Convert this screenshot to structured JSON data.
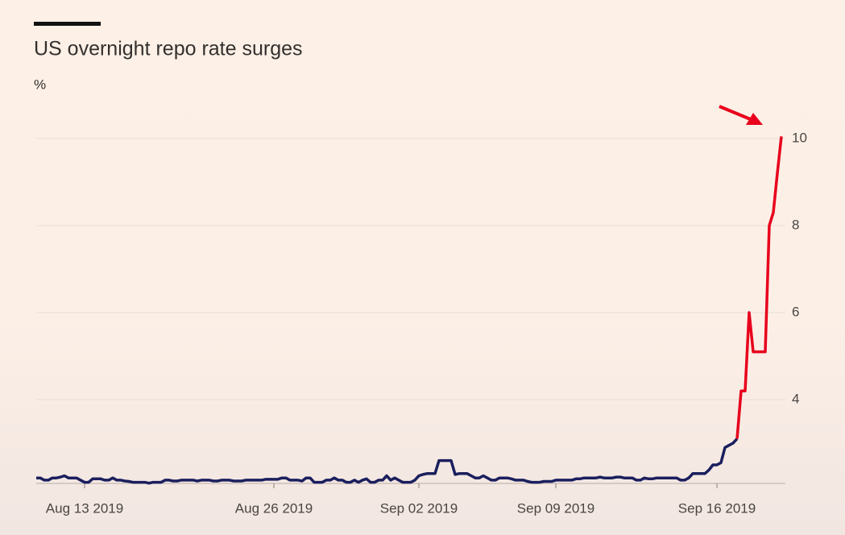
{
  "chart_data": {
    "type": "line",
    "title": "US overnight repo rate surges",
    "y_unit": "%",
    "categories": [
      null,
      null,
      null,
      null,
      null,
      null,
      null,
      null,
      null,
      null,
      null,
      null,
      "Aug 13 2019",
      null,
      null,
      null,
      null,
      null,
      null,
      null,
      null,
      null,
      null,
      null,
      null,
      null,
      null,
      null,
      null,
      null,
      null,
      null,
      null,
      null,
      null,
      null,
      null,
      null,
      null,
      null,
      null,
      null,
      null,
      null,
      null,
      null,
      null,
      null,
      null,
      null,
      null,
      null,
      null,
      null,
      null,
      null,
      null,
      null,
      null,
      "Aug 26 2019",
      null,
      null,
      null,
      null,
      null,
      null,
      null,
      null,
      null,
      null,
      null,
      null,
      null,
      null,
      null,
      null,
      null,
      null,
      null,
      null,
      null,
      null,
      null,
      null,
      null,
      null,
      null,
      null,
      null,
      null,
      null,
      null,
      null,
      null,
      null,
      "Sep 02 2019",
      null,
      null,
      null,
      null,
      null,
      null,
      null,
      null,
      null,
      null,
      null,
      null,
      null,
      null,
      null,
      null,
      null,
      null,
      null,
      null,
      null,
      null,
      null,
      null,
      null,
      null,
      null,
      null,
      null,
      null,
      null,
      null,
      null,
      "Sep 09 2019",
      null,
      null,
      null,
      null,
      null,
      null,
      null,
      null,
      null,
      null,
      null,
      null,
      null,
      null,
      null,
      null,
      null,
      null,
      null,
      null,
      null,
      null,
      null,
      null,
      null,
      null,
      null,
      null,
      null,
      null,
      null,
      null,
      null,
      null,
      null,
      null,
      null,
      null,
      null,
      "Sep 16 2019",
      null,
      null,
      null,
      null,
      null,
      null,
      null,
      null,
      null,
      null,
      null,
      null,
      null,
      null,
      null,
      null
    ],
    "series": [
      {
        "color": "#1b1f5e",
        "values": [
          2.2,
          2.2,
          2.15,
          2.15,
          2.2,
          2.2,
          2.22,
          2.25,
          2.2,
          2.2,
          2.2,
          2.15,
          2.1,
          2.1,
          2.18,
          2.18,
          2.18,
          2.15,
          2.15,
          2.2,
          2.15,
          2.15,
          2.13,
          2.12,
          2.1,
          2.1,
          2.1,
          2.1,
          2.08,
          2.1,
          2.1,
          2.1,
          2.15,
          2.15,
          2.13,
          2.13,
          2.15,
          2.15,
          2.15,
          2.15,
          2.13,
          2.15,
          2.15,
          2.15,
          2.13,
          2.13,
          2.15,
          2.15,
          2.15,
          2.13,
          2.13,
          2.13,
          2.15,
          2.15,
          2.15,
          2.15,
          2.15,
          2.17,
          2.17,
          2.17,
          2.17,
          2.2,
          2.2,
          2.15,
          2.15,
          2.15,
          2.13,
          2.2,
          2.2,
          2.1,
          2.1,
          2.1,
          2.15,
          2.15,
          2.2,
          2.15,
          2.15,
          2.1,
          2.1,
          2.15,
          2.1,
          2.15,
          2.18,
          2.1,
          2.1,
          2.15,
          2.15,
          2.25,
          2.15,
          2.2,
          2.15,
          2.1,
          2.1,
          2.1,
          2.15,
          2.25,
          2.28,
          2.3,
          2.3,
          2.3,
          2.6,
          2.6,
          2.6,
          2.6,
          2.28,
          2.3,
          2.3,
          2.3,
          2.25,
          2.2,
          2.2,
          2.25,
          2.2,
          2.15,
          2.15,
          2.2,
          2.2,
          2.2,
          2.18,
          2.15,
          2.15,
          2.15,
          2.12,
          2.1,
          2.1,
          2.1,
          2.12,
          2.12,
          2.12,
          2.15,
          2.15,
          2.15,
          2.15,
          2.15,
          2.18,
          2.18,
          2.2,
          2.2,
          2.2,
          2.2,
          2.22,
          2.2,
          2.2,
          2.2,
          2.22,
          2.22,
          2.2,
          2.2,
          2.2,
          2.15,
          2.15,
          2.2,
          2.18,
          2.18,
          2.2,
          2.2,
          2.2,
          2.2,
          2.2,
          2.2,
          2.15,
          2.15,
          2.2,
          2.3,
          2.3,
          2.3,
          2.3,
          2.38,
          2.5,
          2.5,
          2.55,
          2.9,
          2.95,
          3.0,
          3.1,
          null,
          null,
          null,
          null,
          null,
          null,
          null,
          null,
          null,
          null,
          null
        ]
      },
      {
        "color": "#e8001c",
        "values": [
          null,
          null,
          null,
          null,
          null,
          null,
          null,
          null,
          null,
          null,
          null,
          null,
          null,
          null,
          null,
          null,
          null,
          null,
          null,
          null,
          null,
          null,
          null,
          null,
          null,
          null,
          null,
          null,
          null,
          null,
          null,
          null,
          null,
          null,
          null,
          null,
          null,
          null,
          null,
          null,
          null,
          null,
          null,
          null,
          null,
          null,
          null,
          null,
          null,
          null,
          null,
          null,
          null,
          null,
          null,
          null,
          null,
          null,
          null,
          null,
          null,
          null,
          null,
          null,
          null,
          null,
          null,
          null,
          null,
          null,
          null,
          null,
          null,
          null,
          null,
          null,
          null,
          null,
          null,
          null,
          null,
          null,
          null,
          null,
          null,
          null,
          null,
          null,
          null,
          null,
          null,
          null,
          null,
          null,
          null,
          null,
          null,
          null,
          null,
          null,
          null,
          null,
          null,
          null,
          null,
          null,
          null,
          null,
          null,
          null,
          null,
          null,
          null,
          null,
          null,
          null,
          null,
          null,
          null,
          null,
          null,
          null,
          null,
          null,
          null,
          null,
          null,
          null,
          null,
          null,
          null,
          null,
          null,
          null,
          null,
          null,
          null,
          null,
          null,
          null,
          null,
          null,
          null,
          null,
          null,
          null,
          null,
          null,
          null,
          null,
          null,
          null,
          null,
          null,
          null,
          null,
          null,
          null,
          null,
          null,
          null,
          null,
          null,
          null,
          null,
          null,
          null,
          null,
          null,
          null,
          null,
          null,
          null,
          null,
          3.1,
          4.2,
          4.2,
          6.0,
          5.1,
          5.1,
          5.1,
          5.1,
          8.0,
          8.3,
          9.2,
          10.05
        ]
      }
    ],
    "ylim": [
      2,
      10.6
    ],
    "yticks": [
      4,
      6,
      8,
      10
    ],
    "grid": true
  }
}
